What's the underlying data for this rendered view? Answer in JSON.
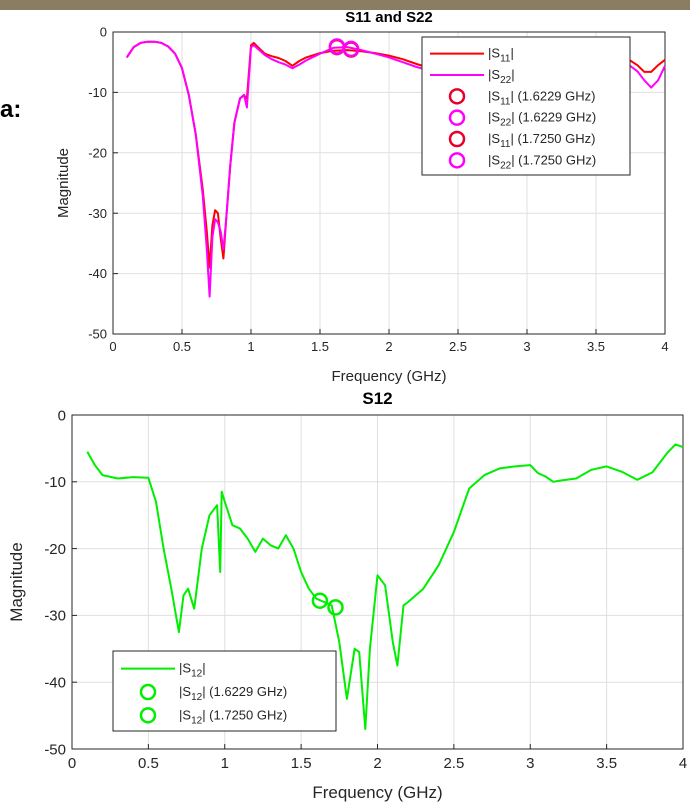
{
  "side_label": "a:",
  "chart_data": [
    {
      "type": "line",
      "title": "S11 and S22",
      "xlabel": "Frequency (GHz)",
      "ylabel": "Magnitude",
      "xlim": [
        0,
        4
      ],
      "ylim": [
        -50,
        0
      ],
      "grid": true,
      "legend_position": "top-right",
      "xticks": [
        "0",
        "0.5",
        "1",
        "1.5",
        "2",
        "2.5",
        "3",
        "3.5",
        "4"
      ],
      "yticks": [
        "0",
        "-10",
        "-20",
        "-30",
        "-40",
        "-50"
      ],
      "series": [
        {
          "name": "|S11|",
          "color": "#ff0000",
          "x": [
            0.1,
            0.15,
            0.2,
            0.25,
            0.3,
            0.35,
            0.4,
            0.45,
            0.5,
            0.55,
            0.6,
            0.65,
            0.68,
            0.7,
            0.72,
            0.74,
            0.76,
            0.78,
            0.8,
            0.82,
            0.85,
            0.88,
            0.92,
            0.95,
            0.97,
            1.0,
            1.02,
            1.05,
            1.1,
            1.15,
            1.2,
            1.25,
            1.3,
            1.35,
            1.4,
            1.5,
            1.6,
            1.7,
            1.8,
            1.9,
            2.0,
            2.1,
            2.2,
            2.3,
            2.4,
            3.5,
            3.6,
            3.7,
            3.8,
            3.85,
            3.9,
            3.95,
            4.0
          ],
          "y": [
            -4.2,
            -2.5,
            -1.8,
            -1.6,
            -1.6,
            -1.8,
            -2.4,
            -3.6,
            -6,
            -10.5,
            -17,
            -26,
            -33,
            -39,
            -32,
            -29.5,
            -30,
            -34,
            -37.5,
            -31,
            -22,
            -15,
            -11,
            -10.5,
            -11,
            -2.2,
            -1.8,
            -2.5,
            -3.6,
            -4,
            -4.3,
            -4.8,
            -5.6,
            -4.8,
            -4.2,
            -3.5,
            -3.1,
            -3.0,
            -3.2,
            -3.5,
            -3.9,
            -4.5,
            -5.3,
            -6,
            -6.2,
            -3.2,
            -3.4,
            -4,
            -5.5,
            -6.6,
            -6.6,
            -5.5,
            -4.6
          ]
        },
        {
          "name": "|S22|",
          "color": "#ff00ff",
          "x": [
            0.1,
            0.15,
            0.2,
            0.25,
            0.3,
            0.35,
            0.4,
            0.45,
            0.5,
            0.55,
            0.6,
            0.65,
            0.68,
            0.7,
            0.72,
            0.74,
            0.76,
            0.78,
            0.8,
            0.82,
            0.85,
            0.88,
            0.92,
            0.95,
            0.97,
            1.0,
            1.02,
            1.05,
            1.1,
            1.15,
            1.2,
            1.25,
            1.3,
            1.35,
            1.4,
            1.5,
            1.6,
            1.7,
            1.8,
            1.9,
            2.0,
            2.1,
            2.2,
            2.3,
            2.4,
            3.5,
            3.6,
            3.7,
            3.8,
            3.85,
            3.9,
            3.95,
            4.0
          ],
          "y": [
            -4.2,
            -2.5,
            -1.8,
            -1.6,
            -1.6,
            -1.8,
            -2.4,
            -3.6,
            -6,
            -10.5,
            -17,
            -27,
            -36,
            -43.8,
            -34,
            -31,
            -31.5,
            -33,
            -36,
            -31,
            -22,
            -15,
            -11,
            -10.4,
            -12.5,
            -2.5,
            -2.2,
            -2.8,
            -3.8,
            -4.5,
            -5,
            -5.4,
            -6,
            -5.4,
            -4.7,
            -3.6,
            -2.6,
            -2.5,
            -3,
            -3.6,
            -4.2,
            -5,
            -5.8,
            -6.4,
            -6.6,
            -3.5,
            -3.9,
            -4.8,
            -6.5,
            -8,
            -9.2,
            -8,
            -5.6
          ]
        }
      ],
      "markers": [
        {
          "name": "|S11| (1.6229 GHz)",
          "color": "#e8002a",
          "x": 1.6229,
          "y": -2.5
        },
        {
          "name": "|S22| (1.6229 GHz)",
          "color": "#ff00ff",
          "x": 1.6229,
          "y": -2.4
        },
        {
          "name": "|S11| (1.7250 GHz)",
          "color": "#e8002a",
          "x": 1.725,
          "y": -2.9
        },
        {
          "name": "|S22| (1.7250 GHz)",
          "color": "#ff00ff",
          "x": 1.725,
          "y": -2.8
        }
      ]
    },
    {
      "type": "line",
      "title": "S12",
      "xlabel": "Frequency (GHz)",
      "ylabel": "Magnitude",
      "xlim": [
        0,
        4
      ],
      "ylim": [
        -50,
        0
      ],
      "grid": true,
      "legend_position": "bottom-left",
      "xticks": [
        "0",
        "0.5",
        "1",
        "1.5",
        "2",
        "2.5",
        "3",
        "3.5",
        "4"
      ],
      "yticks": [
        "0",
        "-10",
        "-20",
        "-30",
        "-40",
        "-50"
      ],
      "series": [
        {
          "name": "|S12|",
          "color": "#00ee00",
          "x": [
            0.1,
            0.15,
            0.2,
            0.3,
            0.4,
            0.5,
            0.55,
            0.6,
            0.65,
            0.7,
            0.73,
            0.76,
            0.8,
            0.85,
            0.9,
            0.95,
            0.97,
            0.98,
            1.0,
            1.05,
            1.1,
            1.15,
            1.2,
            1.25,
            1.3,
            1.35,
            1.4,
            1.45,
            1.5,
            1.55,
            1.6,
            1.65,
            1.7,
            1.75,
            1.8,
            1.85,
            1.88,
            1.92,
            1.95,
            2.0,
            2.05,
            2.1,
            2.13,
            2.17,
            2.2,
            2.3,
            2.4,
            2.5,
            2.6,
            2.7,
            2.8,
            2.9,
            3.0,
            3.05,
            3.1,
            3.15,
            3.2,
            3.3,
            3.4,
            3.5,
            3.6,
            3.7,
            3.8,
            3.9,
            3.95,
            4.0
          ],
          "y": [
            -5.5,
            -7.5,
            -9,
            -9.5,
            -9.3,
            -9.4,
            -13,
            -20,
            -26,
            -32.5,
            -27,
            -26,
            -29,
            -20,
            -15,
            -13.5,
            -23.5,
            -11.5,
            -13,
            -16.5,
            -17,
            -18.5,
            -20.5,
            -18.5,
            -19.5,
            -20,
            -18,
            -20,
            -23.5,
            -26,
            -27.5,
            -28,
            -28.5,
            -34,
            -42.5,
            -35,
            -35.5,
            -47,
            -35,
            -24,
            -25.5,
            -34,
            -37.5,
            -28.5,
            -28,
            -26,
            -22.5,
            -17.5,
            -11,
            -9,
            -8,
            -7.7,
            -7.5,
            -8.7,
            -9.2,
            -10,
            -9.8,
            -9.5,
            -8.2,
            -7.7,
            -8.5,
            -9.7,
            -8.6,
            -5.6,
            -4.4,
            -4.8
          ]
        }
      ],
      "markers": [
        {
          "name": "|S12| (1.6229 GHz)",
          "color": "#00ee00",
          "x": 1.6229,
          "y": -27.8
        },
        {
          "name": "|S12| (1.7250 GHz)",
          "color": "#00ee00",
          "x": 1.725,
          "y": -28.8
        }
      ]
    }
  ]
}
